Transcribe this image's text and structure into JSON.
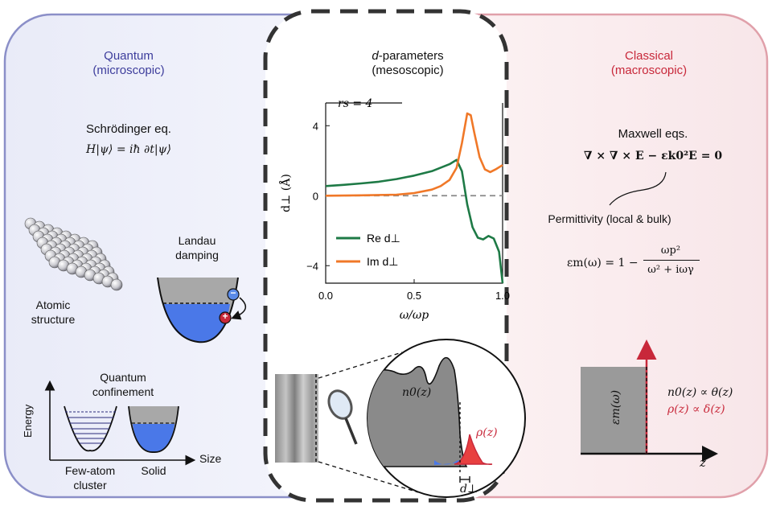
{
  "columns": {
    "quantum": {
      "title": "Quantum",
      "subtitle": "(microscopic)",
      "equation_title": "Schrödinger eq.",
      "equation": "H|ψ⟩ = iħ ∂t|ψ⟩",
      "atomic_label_1": "Atomic",
      "atomic_label_2": "structure",
      "landau_label_1": "Landau",
      "landau_label_2": "damping",
      "confinement_label_1": "Quantum",
      "confinement_label_2": "confinement",
      "energy_axis": "Energy",
      "size_axis": "Size",
      "few_atom_1": "Few-atom",
      "few_atom_2": "cluster",
      "solid": "Solid",
      "minus_sign": "−",
      "plus_sign": "+"
    },
    "mesoscopic": {
      "title_italic": "d",
      "title_rest": "-parameters",
      "subtitle": "(mesoscopic)",
      "density_label": "n0(z)",
      "rho_label": "ρ(z)",
      "dperp_label": "d⊥"
    },
    "classical": {
      "title": "Classical",
      "subtitle": "(macroscopic)",
      "equation_title": "Maxwell eqs.",
      "equation": "∇ × ∇ × E − εk0²E = 0",
      "permittivity_label": "Permittivity (local & bulk)",
      "drude_lhs": "εm(ω) = 1 −",
      "drude_num": "ωp²",
      "drude_den": "ω² + iωγ",
      "box_label": "εm(ω)",
      "n0_relation": "n0(z) ∝ θ(z)",
      "rho_relation": "ρ(z) ∝ δ(z)",
      "z_axis": "z"
    }
  },
  "colors": {
    "quantum_bg": "#eef0fa",
    "quantum_border": "#8b8fc8",
    "classical_bg": "#fbeef0",
    "classical_border": "#e0a0aa",
    "green": "#1e7a46",
    "orange": "#f07828",
    "red": "#c8283a",
    "blue_fill": "#4a78e8",
    "gray_fill": "#a8a8a8"
  },
  "chart_data": {
    "type": "line",
    "annotation": "rs = 4",
    "xlabel": "ω/ωp",
    "ylabel": "d⊥ (Å)",
    "xlim": [
      0,
      1
    ],
    "ylim": [
      -5,
      5.3
    ],
    "xticks": [
      "0.0",
      "0.5",
      "1.0"
    ],
    "yticks": [
      "4",
      "0",
      "−4"
    ],
    "grid": false,
    "legend_position": "bottom-left",
    "series": [
      {
        "name": "Re d⊥",
        "color": "#1e7a46",
        "x": [
          0,
          0.1,
          0.2,
          0.3,
          0.4,
          0.5,
          0.6,
          0.7,
          0.74,
          0.77,
          0.8,
          0.83,
          0.86,
          0.89,
          0.92,
          0.95,
          0.98,
          1.0
        ],
        "y": [
          0.55,
          0.62,
          0.7,
          0.8,
          0.95,
          1.15,
          1.4,
          1.8,
          2.05,
          1.4,
          -0.5,
          -1.8,
          -2.4,
          -2.5,
          -2.3,
          -2.45,
          -3.2,
          -5.0
        ]
      },
      {
        "name": "Im d⊥",
        "color": "#f07828",
        "x": [
          0,
          0.2,
          0.4,
          0.5,
          0.6,
          0.65,
          0.7,
          0.74,
          0.77,
          0.8,
          0.82,
          0.84,
          0.87,
          0.9,
          0.93,
          0.96,
          1.0
        ],
        "y": [
          0.0,
          0.02,
          0.06,
          0.15,
          0.35,
          0.55,
          0.9,
          1.6,
          3.0,
          4.7,
          4.6,
          3.6,
          2.2,
          1.5,
          1.35,
          1.5,
          1.75
        ]
      }
    ]
  }
}
